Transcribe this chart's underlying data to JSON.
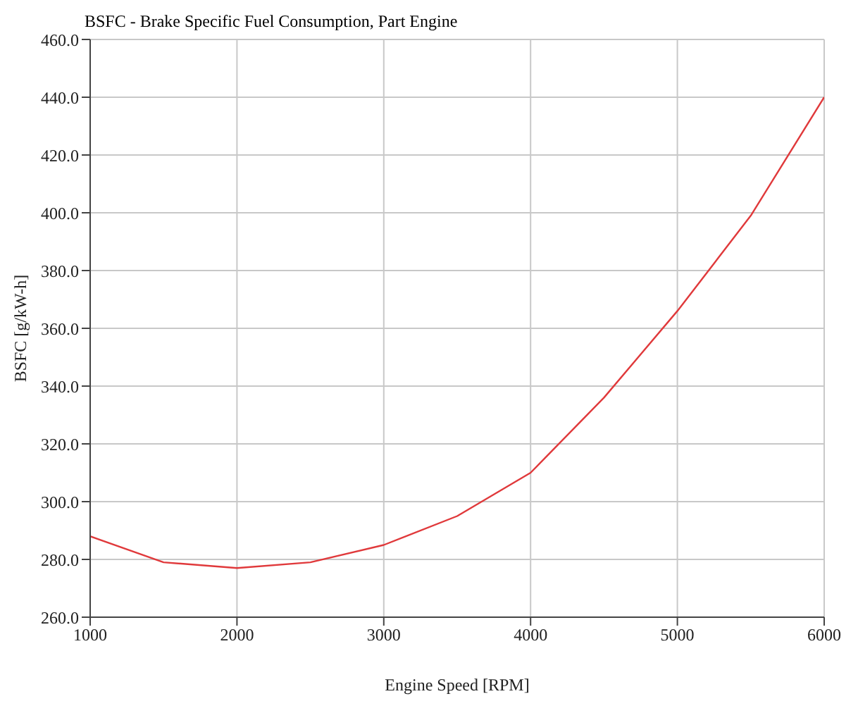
{
  "chart_data": {
    "type": "line",
    "title": "BSFC - Brake Specific Fuel Consumption, Part Engine",
    "xlabel": "Engine Speed [RPM]",
    "ylabel": "BSFC [g/kW-h]",
    "x": [
      1000,
      1500,
      2000,
      2500,
      3000,
      3500,
      4000,
      4500,
      5000,
      5500,
      6000
    ],
    "series": [
      {
        "color": "#e0393b",
        "values": [
          288,
          279,
          277,
          279,
          285,
          295,
          310,
          336,
          366,
          399,
          440
        ]
      }
    ],
    "xlim": [
      1000,
      6000
    ],
    "xticks": [
      1000,
      2000,
      3000,
      4000,
      5000,
      6000
    ],
    "ylim": [
      260,
      460
    ],
    "yticks": [
      {
        "value": 260,
        "label": "260.0"
      },
      {
        "value": 280,
        "label": "280.0"
      },
      {
        "value": 300,
        "label": "300.0"
      },
      {
        "value": 320,
        "label": "320.0"
      },
      {
        "value": 340,
        "label": "340.0"
      },
      {
        "value": 360,
        "label": "360.0"
      },
      {
        "value": 380,
        "label": "380.0"
      },
      {
        "value": 400,
        "label": "400.0"
      },
      {
        "value": 420,
        "label": "420.0"
      },
      {
        "value": 440,
        "label": "440.0"
      },
      {
        "value": 460,
        "label": "460.0"
      }
    ],
    "grid": true,
    "legend": false,
    "marker": "none"
  }
}
